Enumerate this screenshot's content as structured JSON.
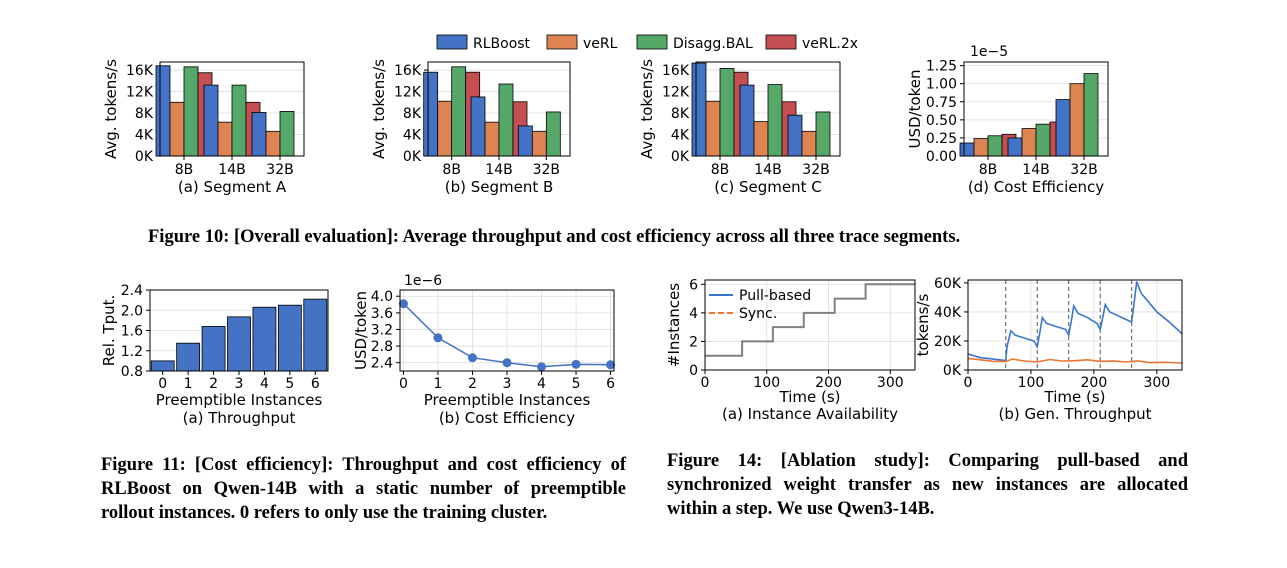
{
  "colors": {
    "RLBoost": "#4472c4",
    "veRL": "#dd8452",
    "Disagg.BAL": "#55a868",
    "veRL.2x": "#c44e52",
    "pull": "#3a76d0",
    "sync": "#ee7633"
  },
  "legend": [
    "RLBoost",
    "veRL",
    "Disagg.BAL",
    "veRL.2x"
  ],
  "chart_data": [
    {
      "id": "fig10a",
      "type": "bar",
      "title": "(a) Segment A",
      "xlabel": "",
      "ylabel": "Avg. tokens/s",
      "categories": [
        "8B",
        "14B",
        "32B"
      ],
      "ylim": [
        0,
        17500
      ],
      "yticks": [
        0,
        4000,
        8000,
        12000,
        16000
      ],
      "yticklabels": [
        "0K",
        "4K",
        "8K",
        "12K",
        "16K"
      ],
      "series": [
        {
          "name": "RLBoost",
          "values": [
            16800,
            13200,
            8100
          ]
        },
        {
          "name": "veRL",
          "values": [
            10000,
            6300,
            4600
          ]
        },
        {
          "name": "Disagg.BAL",
          "values": [
            16600,
            13200,
            8300
          ]
        },
        {
          "name": "veRL.2x",
          "values": [
            15500,
            10000,
            null
          ]
        }
      ]
    },
    {
      "id": "fig10b",
      "type": "bar",
      "title": "(b) Segment B",
      "xlabel": "",
      "ylabel": "Avg. tokens/s",
      "categories": [
        "8B",
        "14B",
        "32B"
      ],
      "ylim": [
        0,
        17500
      ],
      "yticks": [
        0,
        4000,
        8000,
        12000,
        16000
      ],
      "yticklabels": [
        "0K",
        "4K",
        "8K",
        "12K",
        "16K"
      ],
      "series": [
        {
          "name": "RLBoost",
          "values": [
            15600,
            11000,
            5600
          ]
        },
        {
          "name": "veRL",
          "values": [
            10200,
            6300,
            4600
          ]
        },
        {
          "name": "Disagg.BAL",
          "values": [
            16600,
            13400,
            8200
          ]
        },
        {
          "name": "veRL.2x",
          "values": [
            15600,
            10100,
            null
          ]
        }
      ]
    },
    {
      "id": "fig10c",
      "type": "bar",
      "title": "(c) Segment C",
      "xlabel": "",
      "ylabel": "Avg. tokens/s",
      "categories": [
        "8B",
        "14B",
        "32B"
      ],
      "ylim": [
        0,
        17500
      ],
      "yticks": [
        0,
        4000,
        8000,
        12000,
        16000
      ],
      "yticklabels": [
        "0K",
        "4K",
        "8K",
        "12K",
        "16K"
      ],
      "series": [
        {
          "name": "RLBoost",
          "values": [
            17300,
            13200,
            7600
          ]
        },
        {
          "name": "veRL",
          "values": [
            10200,
            6400,
            4600
          ]
        },
        {
          "name": "Disagg.BAL",
          "values": [
            16300,
            13300,
            8200
          ]
        },
        {
          "name": "veRL.2x",
          "values": [
            15600,
            10100,
            null
          ]
        }
      ]
    },
    {
      "id": "fig10d",
      "type": "bar",
      "title": "(d) Cost Efficiency",
      "xlabel": "",
      "ylabel": "USD/token",
      "offset_label": "1e−5",
      "categories": [
        "8B",
        "14B",
        "32B"
      ],
      "ylim": [
        0,
        1.3
      ],
      "yticks": [
        0,
        0.25,
        0.5,
        0.75,
        1.0,
        1.25
      ],
      "yticklabels": [
        "0.00",
        "0.25",
        "0.50",
        "0.75",
        "1.00",
        "1.25"
      ],
      "series": [
        {
          "name": "RLBoost",
          "values": [
            0.18,
            0.25,
            0.78
          ]
        },
        {
          "name": "veRL",
          "values": [
            0.24,
            0.38,
            1.0
          ]
        },
        {
          "name": "Disagg.BAL",
          "values": [
            0.28,
            0.44,
            1.14
          ]
        },
        {
          "name": "veRL.2x",
          "values": [
            0.3,
            0.47,
            null
          ]
        }
      ]
    },
    {
      "id": "fig11a",
      "type": "bar",
      "title": "(a) Throughput",
      "xlabel": "Preemptible Instances",
      "ylabel": "Rel. Tput.",
      "categories": [
        "0",
        "1",
        "2",
        "3",
        "4",
        "5",
        "6"
      ],
      "ylim": [
        0.8,
        2.4
      ],
      "yticks": [
        0.8,
        1.2,
        1.6,
        2.0,
        2.4
      ],
      "yticklabels": [
        "0.8",
        "1.2",
        "1.6",
        "2.0",
        "2.4"
      ],
      "values": [
        1.0,
        1.35,
        1.68,
        1.87,
        2.06,
        2.1,
        2.22
      ]
    },
    {
      "id": "fig11b",
      "type": "line",
      "title": "(b) Cost Efficiency",
      "xlabel": "Preemptible Instances",
      "ylabel": "USD/token",
      "offset_label": "1e−6",
      "x": [
        0,
        1,
        2,
        3,
        4,
        5,
        6
      ],
      "values": [
        3.82,
        3.0,
        2.52,
        2.4,
        2.3,
        2.36,
        2.35
      ],
      "xlim": [
        -0.1,
        6.1
      ],
      "ylim": [
        2.2,
        4.15
      ],
      "xticks": [
        0,
        1,
        2,
        3,
        4,
        5,
        6
      ],
      "xticklabels": [
        "0",
        "1",
        "2",
        "3",
        "4",
        "5",
        "6"
      ],
      "yticks": [
        2.4,
        2.8,
        3.2,
        3.6,
        4.0
      ],
      "yticklabels": [
        "2.4",
        "2.8",
        "3.2",
        "3.6",
        "4.0"
      ]
    },
    {
      "id": "fig14a",
      "type": "line",
      "title": "(a) Instance Availability",
      "xlabel": "Time (s)",
      "ylabel": "#Instances",
      "xlim": [
        0,
        340
      ],
      "ylim": [
        0,
        6.3
      ],
      "xticks": [
        0,
        100,
        200,
        300
      ],
      "xticklabels": [
        "0",
        "100",
        "200",
        "300"
      ],
      "yticks": [
        0,
        2,
        4,
        6
      ],
      "yticklabels": [
        "0",
        "2",
        "4",
        "6"
      ],
      "series": [
        {
          "name": "Pull-based",
          "x": [
            0,
            60,
            60,
            110,
            110,
            160,
            160,
            210,
            210,
            260,
            260,
            340
          ],
          "values": [
            1,
            1,
            2,
            2,
            3,
            3,
            4,
            4,
            5,
            5,
            6,
            6
          ]
        }
      ],
      "legend": [
        "Pull-based",
        "Sync."
      ]
    },
    {
      "id": "fig14b",
      "type": "line",
      "title": "(b) Gen. Throughput",
      "xlabel": "Time (s)",
      "ylabel": "tokens/s",
      "xlim": [
        0,
        340
      ],
      "ylim": [
        0,
        62000
      ],
      "xticks": [
        0,
        100,
        200,
        300
      ],
      "xticklabels": [
        "0",
        "100",
        "200",
        "300"
      ],
      "yticks": [
        0,
        20000,
        40000,
        60000
      ],
      "yticklabels": [
        "0K",
        "20K",
        "40K",
        "60K"
      ],
      "vlines": [
        60,
        110,
        160,
        210,
        260
      ],
      "series": [
        {
          "name": "Pull-based",
          "x": [
            0,
            20,
            40,
            60,
            62,
            68,
            75,
            90,
            105,
            110,
            115,
            118,
            125,
            140,
            155,
            160,
            165,
            168,
            175,
            190,
            205,
            210,
            215,
            218,
            225,
            240,
            255,
            260,
            265,
            268,
            275,
            300,
            320,
            340
          ],
          "values": [
            11000,
            8500,
            7500,
            6500,
            16000,
            27000,
            24000,
            22000,
            20000,
            16000,
            28000,
            36000,
            32000,
            30000,
            28000,
            24000,
            36000,
            44000,
            39000,
            36000,
            32000,
            28000,
            38000,
            45000,
            40000,
            37000,
            34000,
            33000,
            50000,
            61000,
            53000,
            40000,
            33000,
            25000
          ]
        },
        {
          "name": "Sync.",
          "x": [
            0,
            20,
            40,
            60,
            70,
            90,
            110,
            130,
            150,
            170,
            190,
            210,
            230,
            250,
            270,
            290,
            310,
            340
          ],
          "values": [
            8000,
            7000,
            6000,
            5800,
            7500,
            6200,
            5600,
            7200,
            6200,
            6400,
            7000,
            5900,
            6300,
            5500,
            6300,
            5000,
            5300,
            4800
          ]
        }
      ]
    }
  ],
  "figure10": {
    "caption": "Figure 10: [Overall evaluation]: Average throughput and cost efficiency across all three trace segments."
  },
  "figure11": {
    "caption": "Figure 11: [Cost efficiency]: Throughput and cost efficiency of RLBoost on Qwen-14B with a static number of preemptible rollout instances. 0 refers to only use the training cluster."
  },
  "figure14": {
    "caption": "Figure 14: [Ablation study]: Comparing pull-based and synchronized weight transfer as new instances are allocated within a step. We use Qwen3-14B."
  }
}
